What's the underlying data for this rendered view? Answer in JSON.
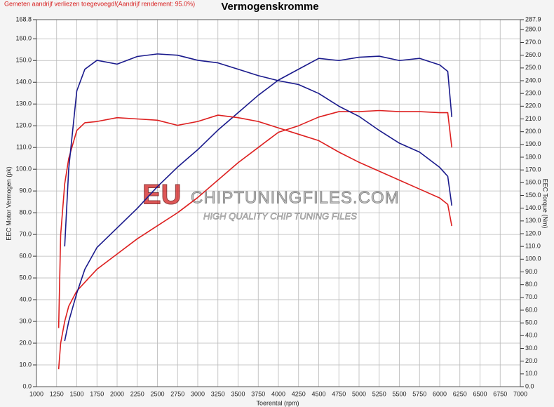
{
  "chart_data": {
    "type": "line",
    "title": "Vermogenskromme",
    "note": "Gemeten aandrijf verliezen toegevoegd!(Aandrijf rendement: 95.0%)",
    "x_label": "Toerental (rpm)",
    "y_label": "EEC Motor Vermogen (pk)",
    "y2_label": "EEC Torque (Nm)",
    "annotations": [
      "EU",
      "CHIPTUNINGFILES.COM",
      "HIGH QUALITY CHIP TUNING FILES"
    ],
    "grid": true,
    "x": [
      1275,
      1300,
      1350,
      1400,
      1500,
      1600,
      1750,
      2000,
      2250,
      2500,
      2750,
      3000,
      3250,
      3500,
      3750,
      4000,
      4250,
      4500,
      4750,
      5000,
      5250,
      5500,
      5750,
      6000,
      6100,
      6150
    ],
    "xlim": [
      1000,
      7000
    ],
    "xticks": [
      1000,
      1250,
      1500,
      1750,
      2000,
      2250,
      2500,
      2750,
      3000,
      3250,
      3500,
      3750,
      4000,
      4250,
      4500,
      4750,
      5000,
      5250,
      5500,
      5750,
      6000,
      6250,
      6500,
      6750,
      7000
    ],
    "ylim": [
      0,
      168.8
    ],
    "yticks": [
      {
        "value": 0,
        "label": "0.0"
      },
      {
        "value": 10,
        "label": "10.0"
      },
      {
        "value": 20,
        "label": "20.0"
      },
      {
        "value": 30,
        "label": "30.0"
      },
      {
        "value": 40,
        "label": "40.0"
      },
      {
        "value": 50,
        "label": "50.0"
      },
      {
        "value": 60,
        "label": "60.0"
      },
      {
        "value": 70,
        "label": "70.0"
      },
      {
        "value": 80,
        "label": "80.0"
      },
      {
        "value": 90,
        "label": "90.0"
      },
      {
        "value": 100,
        "label": "100.0"
      },
      {
        "value": 110,
        "label": "110.0"
      },
      {
        "value": 120,
        "label": "120.0"
      },
      {
        "value": 130,
        "label": "130.0"
      },
      {
        "value": 140,
        "label": "140.0"
      },
      {
        "value": 150,
        "label": "150.0"
      },
      {
        "value": 160,
        "label": "160.0"
      },
      168.8
    ],
    "y2lim": [
      0,
      287.9
    ],
    "y2ticks": [
      {
        "value": 0,
        "label": "0.0"
      },
      {
        "value": 10,
        "label": "10.0"
      },
      {
        "value": 20,
        "label": "20.0"
      },
      {
        "value": 30,
        "label": "30.0"
      },
      {
        "value": 40,
        "label": "40.0"
      },
      {
        "value": 50,
        "label": "50.0"
      },
      {
        "value": 60,
        "label": "60.0"
      },
      {
        "value": 70,
        "label": "70.0"
      },
      {
        "value": 80,
        "label": "80.0"
      },
      {
        "value": 90,
        "label": "90.0"
      },
      {
        "value": 100,
        "label": "100.0"
      },
      {
        "value": 110,
        "label": "110.0"
      },
      {
        "value": 120,
        "label": "120.0"
      },
      {
        "value": 130,
        "label": "130.0"
      },
      {
        "value": 140,
        "label": "140.0"
      },
      {
        "value": 150,
        "label": "150.0"
      },
      {
        "value": 160,
        "label": "160.0"
      },
      {
        "value": 170,
        "label": "170.0"
      },
      {
        "value": 180,
        "label": "180.0"
      },
      {
        "value": 190,
        "label": "190.0"
      },
      {
        "value": 200,
        "label": "200.0"
      },
      {
        "value": 210,
        "label": "210.0"
      },
      {
        "value": 220,
        "label": "220.0"
      },
      {
        "value": 230,
        "label": "230.0"
      },
      {
        "value": 240,
        "label": "240.0"
      },
      {
        "value": 250,
        "label": "250.0"
      },
      {
        "value": 260,
        "label": "260.0"
      },
      {
        "value": 270,
        "label": "270.0"
      },
      {
        "value": 280,
        "label": "280.0"
      },
      287.9
    ],
    "series": [
      {
        "color": "#dd1f1f",
        "values": [
          8,
          20,
          30,
          37,
          44,
          48,
          54,
          61,
          68,
          74,
          80,
          87,
          95,
          103,
          110,
          117,
          120,
          124,
          126.5,
          126.5,
          127,
          126.5,
          126.5,
          126,
          126,
          110
        ]
      },
      {
        "color": "#1a1a8c",
        "values": [
          null,
          null,
          21,
          30,
          43,
          54,
          64,
          73,
          82,
          92,
          101,
          109,
          118,
          126,
          134,
          141,
          146,
          151,
          150,
          151.5,
          152,
          150,
          151,
          148,
          145,
          124
        ]
      },
      {
        "color": "#dd1f1f",
        "axis": "y2",
        "values": [
          46,
          119,
          159,
          179,
          201,
          207,
          208,
          211,
          210,
          209,
          205,
          208,
          213,
          211,
          208,
          203,
          198,
          193,
          184,
          176,
          169,
          162,
          155,
          148,
          143,
          126
        ]
      },
      {
        "color": "#1a1a8c",
        "axis": "y2",
        "values": [
          null,
          null,
          110,
          171,
          232,
          249,
          256,
          253,
          259,
          261,
          260,
          256,
          254,
          249,
          244,
          240,
          237,
          230,
          220,
          212,
          201,
          191,
          184,
          172,
          165,
          142
        ]
      }
    ]
  }
}
